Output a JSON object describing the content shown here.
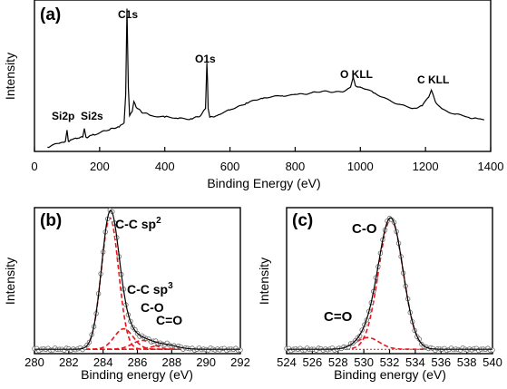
{
  "colors": {
    "data_line": "#000000",
    "fit_line": "#e8151b",
    "marker_edge": "#6b6b6b",
    "baseline": "#e8151b"
  },
  "chart_data": [
    {
      "panel": "(a)",
      "type": "line",
      "xlabel": "Binding Energy (eV)",
      "ylabel": "Intensity",
      "xlim": [
        0,
        1400
      ],
      "xticks": [
        0,
        200,
        400,
        600,
        800,
        1000,
        1200,
        1400
      ],
      "ylim": [
        0,
        1
      ],
      "yticks_shown": false,
      "series": [
        {
          "values_note": "",
          "x": [
            40,
            60,
            80,
            95,
            100,
            104,
            110,
            130,
            148,
            153,
            158,
            180,
            200,
            230,
            260,
            275,
            280,
            284,
            288,
            292,
            300,
            305,
            312,
            330,
            360,
            400,
            440,
            480,
            510,
            525,
            529,
            531,
            533,
            538,
            560,
            600,
            650,
            700,
            760,
            800,
            850,
            900,
            950,
            970,
            978,
            985,
            1000,
            1040,
            1080,
            1120,
            1160,
            1190,
            1210,
            1218,
            1223,
            1230,
            1250,
            1290,
            1330,
            1360,
            1380
          ],
          "y": [
            0.03,
            0.05,
            0.06,
            0.07,
            0.15,
            0.07,
            0.08,
            0.09,
            0.1,
            0.16,
            0.1,
            0.12,
            0.13,
            0.15,
            0.17,
            0.2,
            0.4,
            1.0,
            0.45,
            0.25,
            0.28,
            0.35,
            0.31,
            0.27,
            0.25,
            0.24,
            0.23,
            0.23,
            0.25,
            0.3,
            0.62,
            0.5,
            0.3,
            0.24,
            0.25,
            0.29,
            0.34,
            0.37,
            0.39,
            0.4,
            0.41,
            0.42,
            0.42,
            0.45,
            0.52,
            0.46,
            0.45,
            0.41,
            0.37,
            0.33,
            0.3,
            0.32,
            0.38,
            0.43,
            0.4,
            0.35,
            0.3,
            0.26,
            0.24,
            0.23,
            0.22
          ]
        }
      ],
      "annotations": [
        {
          "text": "C1s",
          "x": 284
        },
        {
          "text": "O1s",
          "x": 531
        },
        {
          "text": "Si2p",
          "x": 100
        },
        {
          "text": "Si2s",
          "x": 153
        },
        {
          "text": "O KLL",
          "x": 978
        },
        {
          "text": "C KLL",
          "x": 1223
        }
      ]
    },
    {
      "panel": "(b)",
      "type": "line",
      "xlabel": "Binding energy (eV)",
      "ylabel": "Intensity",
      "xlim": [
        280,
        292
      ],
      "xticks": [
        280,
        282,
        284,
        286,
        288,
        290,
        292
      ],
      "ylim": [
        0,
        1
      ],
      "yticks_shown": false,
      "baseline": 0.03,
      "components": [
        {
          "name": "C-C sp2",
          "center": 284.4,
          "height": 0.9,
          "width": 0.5
        },
        {
          "name": "C-C sp3",
          "center": 285.2,
          "height": 0.14,
          "width": 0.55
        },
        {
          "name": "C-O",
          "center": 286.3,
          "height": 0.06,
          "width": 0.6
        },
        {
          "name": "C=O",
          "center": 287.6,
          "height": 0.03,
          "width": 0.7
        }
      ],
      "annotations": [
        {
          "text": "C-C sp",
          "sup": "2"
        },
        {
          "text": "C-C sp",
          "sup": "3"
        },
        {
          "text": "C-O"
        },
        {
          "text": "C=O"
        }
      ]
    },
    {
      "panel": "(c)",
      "type": "line",
      "xlabel": "Binding energy (eV)",
      "ylabel": "Intensity",
      "xlim": [
        524,
        540
      ],
      "xticks": [
        524,
        526,
        528,
        530,
        532,
        534,
        536,
        538,
        540
      ],
      "ylim": [
        0,
        1
      ],
      "yticks_shown": false,
      "baseline": 0.03,
      "components": [
        {
          "name": "C-O",
          "center": 532.1,
          "height": 0.89,
          "width": 0.95
        },
        {
          "name": "C=O",
          "center": 530.3,
          "height": 0.08,
          "width": 0.9
        }
      ],
      "annotations": [
        {
          "text": "C-O"
        },
        {
          "text": "C=O"
        }
      ]
    }
  ]
}
